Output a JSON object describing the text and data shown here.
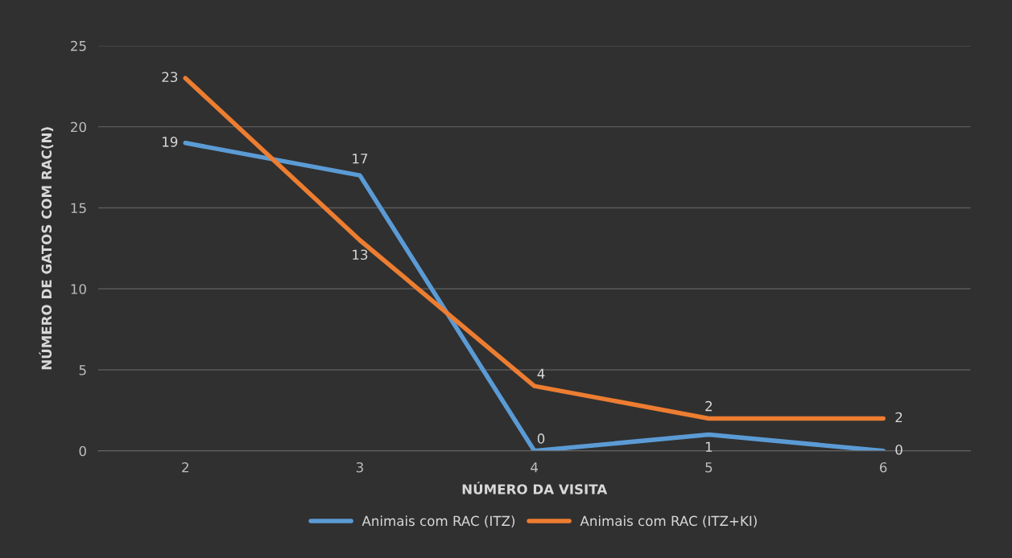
{
  "chart_data": {
    "type": "line",
    "xlabel": "NÚMERO DA VISITA",
    "ylabel": "NÚMERO DE GATOS COM RAC(N)",
    "categories": [
      "2",
      "3",
      "4",
      "5",
      "6"
    ],
    "series": [
      {
        "name": "Animais com RAC (ITZ)",
        "color": "#5b9bd5",
        "values": [
          19,
          17,
          0,
          1,
          0
        ]
      },
      {
        "name": "Animais com RAC (ITZ+KI)",
        "color": "#ed7d31",
        "values": [
          23,
          13,
          4,
          2,
          2
        ]
      }
    ],
    "ylim": [
      0,
      25
    ],
    "yticks": [
      0,
      5,
      10,
      15,
      20,
      25
    ],
    "grid": "y",
    "legend": "bottom",
    "data_labels": true,
    "marker": "none",
    "line_style": "solid"
  }
}
